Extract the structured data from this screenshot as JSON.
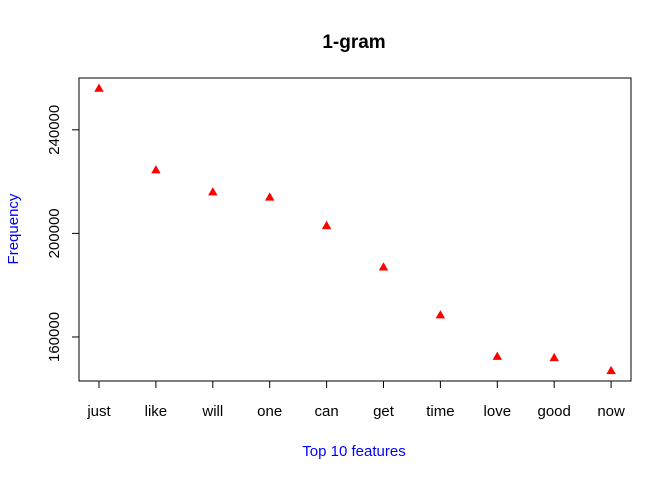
{
  "chart_data": {
    "type": "scatter",
    "title": "1-gram",
    "xlabel": "Top 10 features",
    "ylabel": "Frequency",
    "categories": [
      "just",
      "like",
      "will",
      "one",
      "can",
      "get",
      "time",
      "love",
      "good",
      "now"
    ],
    "values": [
      256000,
      224500,
      216000,
      214000,
      203000,
      187000,
      168500,
      152500,
      152000,
      147000
    ],
    "yticks": [
      160000,
      200000,
      240000
    ],
    "ytick_labels": [
      "160000",
      "200000",
      "240000"
    ],
    "ylim": [
      143000,
      260000
    ],
    "grid": false,
    "legend": "none",
    "marker": "triangle",
    "colors": {
      "marker": "#ff0000",
      "axis_labels": "#0000ff",
      "frame": "#000000"
    }
  }
}
